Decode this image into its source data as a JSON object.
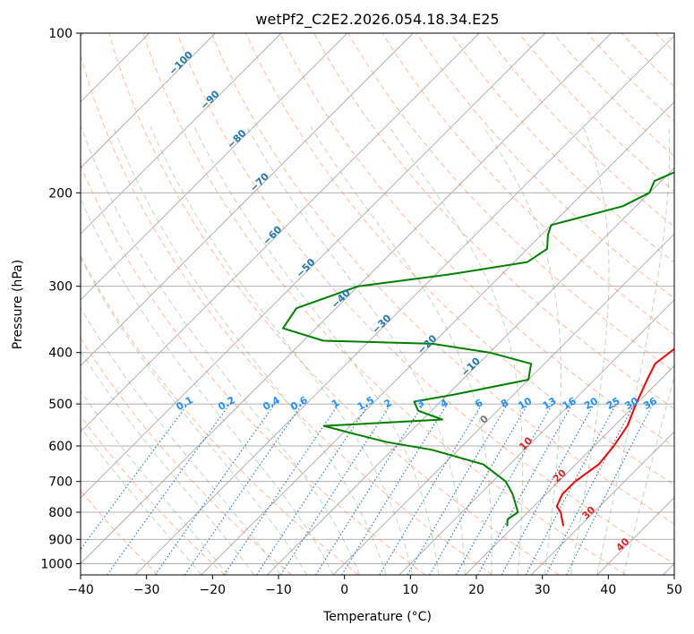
{
  "chart_data": {
    "type": "line",
    "title": "wetPf2_C2E2.2026.054.18.34.E25",
    "xlabel": "Temperature (°C)",
    "ylabel": "Pressure (hPa)",
    "xlim": [
      -40,
      50
    ],
    "ylim": [
      1050,
      100
    ],
    "y_scale": "log",
    "x_ticks": [
      -40,
      -30,
      -20,
      -10,
      0,
      10,
      20,
      30,
      40,
      50
    ],
    "x_tick_labels": [
      "−40",
      "−30",
      "−20",
      "−10",
      "0",
      "10",
      "20",
      "30",
      "40",
      "50"
    ],
    "y_ticks": [
      100,
      200,
      300,
      400,
      500,
      600,
      700,
      800,
      900,
      1000
    ],
    "y_tick_labels": [
      "100",
      "200",
      "300",
      "400",
      "500",
      "600",
      "700",
      "800",
      "900",
      "1000"
    ],
    "series": [
      {
        "name": "Temperature",
        "color": "#ff0000",
        "points": [
          [
            27.5,
            850
          ],
          [
            25,
            800
          ],
          [
            23.5,
            780
          ],
          [
            22.5,
            740
          ],
          [
            22.5,
            700
          ],
          [
            23.5,
            650
          ],
          [
            23,
            600
          ],
          [
            22,
            550
          ],
          [
            20,
            500
          ],
          [
            18,
            450
          ],
          [
            16.8,
            420
          ],
          [
            17.8,
            380
          ],
          [
            18.3,
            350
          ],
          [
            15.5,
            300
          ],
          [
            12,
            270
          ],
          [
            9,
            245
          ],
          [
            3.5,
            205
          ],
          [
            -1,
            170
          ],
          [
            -4,
            150
          ],
          [
            -5,
            130
          ],
          [
            -5.5,
            110
          ],
          [
            -1.5,
            100
          ]
        ]
      },
      {
        "name": "Dewpoint",
        "color": "#008000",
        "points": [
          [
            19,
            850
          ],
          [
            18,
            825
          ],
          [
            18.5,
            800
          ],
          [
            15,
            740
          ],
          [
            12,
            700
          ],
          [
            6,
            650
          ],
          [
            -4,
            610
          ],
          [
            -12,
            590
          ],
          [
            -18,
            570
          ],
          [
            -24,
            550
          ],
          [
            -7,
            535
          ],
          [
            -12,
            515
          ],
          [
            -14,
            495
          ],
          [
            -9,
            480
          ],
          [
            0,
            450
          ],
          [
            -2,
            420
          ],
          [
            -10,
            400
          ],
          [
            -20,
            385
          ],
          [
            -37,
            380
          ],
          [
            -45,
            360
          ],
          [
            -46,
            330
          ],
          [
            -40,
            300
          ],
          [
            -28,
            285
          ],
          [
            -18,
            270
          ],
          [
            -17,
            255
          ],
          [
            -19,
            240
          ],
          [
            -20,
            230
          ],
          [
            -12,
            212
          ],
          [
            -10,
            200
          ],
          [
            -11,
            190
          ],
          [
            -6,
            170
          ],
          [
            -3,
            150
          ],
          [
            -4,
            130
          ],
          [
            -2,
            110
          ],
          [
            3,
            100
          ]
        ]
      }
    ],
    "isotherm_labels": [
      "−100",
      "−90",
      "−80",
      "−70",
      "−60",
      "−50",
      "−40",
      "−30",
      "−20",
      "−10",
      "0",
      "10",
      "20",
      "30",
      "40"
    ],
    "mixing_ratio_labels": [
      "0.1",
      "0.2",
      "0.4",
      "0.6",
      "1",
      "1.5",
      "2",
      "3",
      "4",
      "6",
      "8",
      "10",
      "13",
      "16",
      "20",
      "25",
      "30",
      "36"
    ],
    "colors": {
      "isotherm": "#aaaaaa",
      "dry_adiabat": "#ff7f50",
      "moist_adiabat": "#5fb35f",
      "mixing_ratio": "#1f77b4",
      "label_blue": "#1f77b4",
      "label_light_blue": "#1e90ff",
      "label_red": "#d62728",
      "label_gray": "#777777",
      "grid": "#b0b0b0"
    }
  }
}
